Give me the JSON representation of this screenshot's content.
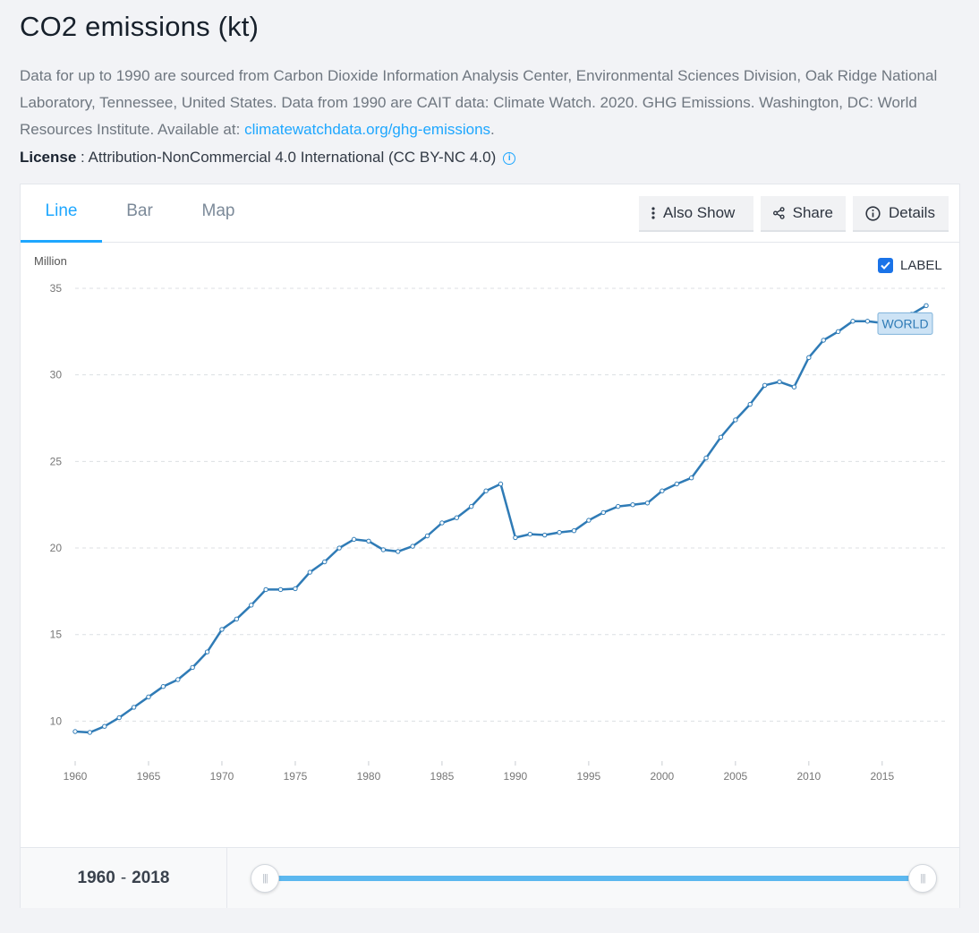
{
  "page": {
    "title": "CO2 emissions (kt)",
    "description": "Data for up to 1990 are sourced from Carbon Dioxide Information Analysis Center, Environmental Sciences Division, Oak Ridge National Laboratory, Tennessee, United States. Data from 1990 are CAIT data: Climate Watch. 2020. GHG Emissions. Washington, DC: World Resources Institute. Available at: ",
    "description_link": "climatewatchdata.org/ghg-emissions",
    "description_end": ".",
    "license_label": "License",
    "license_text": " : Attribution-NonCommercial 4.0 International (CC BY-NC 4.0)",
    "license_icon": "info-icon"
  },
  "tabs": [
    {
      "label": "Line",
      "active": true
    },
    {
      "label": "Bar",
      "active": false
    },
    {
      "label": "Map",
      "active": false
    }
  ],
  "toolbar": {
    "also_show": "Also Show",
    "share": "Share",
    "details": "Details"
  },
  "label_toggle": {
    "label": "LABEL",
    "checked": true
  },
  "range": {
    "start": "1960",
    "separator": "-",
    "end": "2018"
  },
  "colors": {
    "accent": "#1ea7ff",
    "series": "#2f7bb6",
    "label_bg": "#cde3f5"
  },
  "chart_data": {
    "type": "line",
    "ylabel": "Million",
    "ylim": [
      7.9,
      35
    ],
    "yticks": [
      10,
      15,
      20,
      25,
      30,
      35
    ],
    "xlim": [
      1960,
      2018
    ],
    "xticks": [
      1960,
      1965,
      1970,
      1975,
      1980,
      1985,
      1990,
      1995,
      2000,
      2005,
      2010,
      2015
    ],
    "grid": true,
    "series": [
      {
        "name": "WORLD",
        "x": [
          1960,
          1961,
          1962,
          1963,
          1964,
          1965,
          1966,
          1967,
          1968,
          1969,
          1970,
          1971,
          1972,
          1973,
          1974,
          1975,
          1976,
          1977,
          1978,
          1979,
          1980,
          1981,
          1982,
          1983,
          1984,
          1985,
          1986,
          1987,
          1988,
          1989,
          1990,
          1991,
          1992,
          1993,
          1994,
          1995,
          1996,
          1997,
          1998,
          1999,
          2000,
          2001,
          2002,
          2003,
          2004,
          2005,
          2006,
          2007,
          2008,
          2009,
          2010,
          2011,
          2012,
          2013,
          2014,
          2015,
          2016,
          2017,
          2018
        ],
        "values": [
          9.4,
          9.35,
          9.7,
          10.2,
          10.8,
          11.4,
          12.0,
          12.4,
          13.1,
          14.0,
          15.3,
          15.9,
          16.7,
          17.6,
          17.6,
          17.65,
          18.6,
          19.2,
          20.0,
          20.5,
          20.4,
          19.9,
          19.8,
          20.1,
          20.7,
          21.45,
          21.75,
          22.4,
          23.3,
          23.7,
          20.6,
          20.8,
          20.75,
          20.9,
          21.0,
          21.6,
          22.05,
          22.4,
          22.5,
          22.6,
          23.3,
          23.7,
          24.05,
          25.2,
          26.4,
          27.4,
          28.3,
          29.4,
          29.6,
          29.3,
          31.0,
          32.0,
          32.5,
          33.1,
          33.1,
          33.0,
          33.1,
          33.5,
          34.0
        ]
      }
    ]
  }
}
